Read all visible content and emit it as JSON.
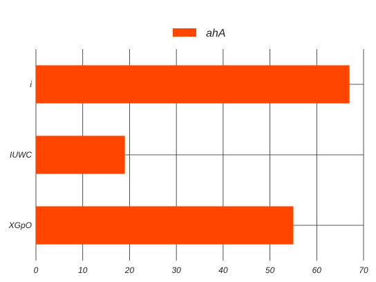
{
  "chart_data": {
    "type": "bar",
    "orientation": "horizontal",
    "categories": [
      "XGpO",
      "IUWC",
      "i"
    ],
    "series": [
      {
        "name": "ahA",
        "values": [
          55,
          19,
          67
        ],
        "color": "#ff4500"
      }
    ],
    "xlim": [
      0,
      70
    ],
    "xticks": [
      0,
      10,
      20,
      30,
      40,
      50,
      60,
      70
    ],
    "grid": true,
    "legend": "top-center"
  }
}
